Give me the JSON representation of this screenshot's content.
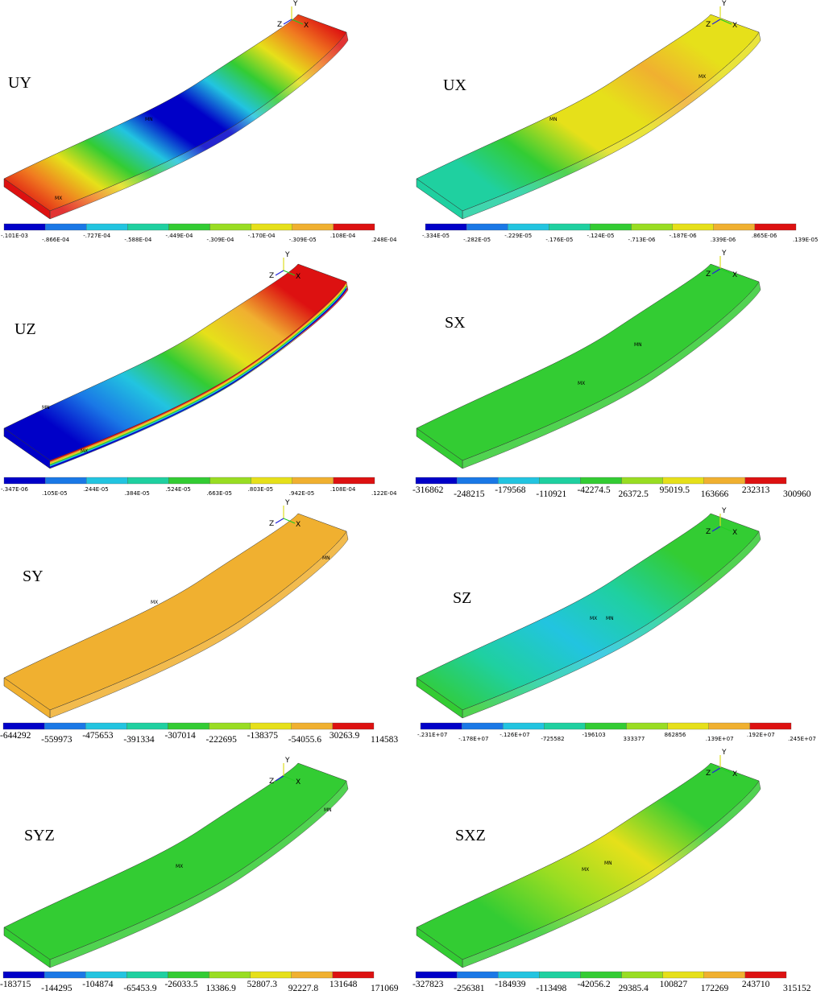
{
  "palette": [
    "#0000c8",
    "#1a78e6",
    "#22c4e0",
    "#1fd0a0",
    "#33cc33",
    "#99dd22",
    "#e6e01a",
    "#f0b030",
    "#f07a20",
    "#dd1111"
  ],
  "panels": [
    {
      "id": "uy",
      "label": "UY",
      "ticks": [
        "-.101E-03",
        "-.866E-04",
        "-.727E-04",
        "-.588E-04",
        "-.449E-04",
        "-.309E-04",
        "-.170E-04",
        "-.309E-05",
        ".108E-04",
        ".248E-04"
      ],
      "tick_style": "small",
      "markers": [
        "MN",
        "MX"
      ]
    },
    {
      "id": "ux",
      "label": "UX",
      "ticks": [
        "-.334E-05",
        "-.282E-05",
        "-.229E-05",
        "-.176E-05",
        "-.124E-05",
        "-.713E-06",
        "-.187E-06",
        ".339E-06",
        ".865E-06",
        ".139E-05"
      ],
      "tick_style": "small",
      "markers": [
        "MN",
        "MX"
      ]
    },
    {
      "id": "uz",
      "label": "UZ",
      "ticks": [
        "-.347E-06",
        ".105E-05",
        ".244E-05",
        ".384E-05",
        ".524E-05",
        ".663E-05",
        ".803E-05",
        ".942E-05",
        ".108E-04",
        ".122E-04"
      ],
      "tick_style": "small",
      "markers": [
        "MN",
        "MX"
      ]
    },
    {
      "id": "sx",
      "label": "SX",
      "ticks": [
        "-316862",
        "-248215",
        "-179568",
        "-110921",
        "-42274.5",
        "26372.5",
        "95019.5",
        "163666",
        "232313",
        "300960"
      ],
      "tick_style": "big",
      "markers": [
        "MN",
        "MX"
      ]
    },
    {
      "id": "sy",
      "label": "SY",
      "ticks": [
        "-644292",
        "-559973",
        "-475653",
        "-391334",
        "-307014",
        "-222695",
        "-138375",
        "-54055.6",
        "30263.9",
        "114583"
      ],
      "tick_style": "big",
      "markers": [
        "MX",
        "MN"
      ]
    },
    {
      "id": "sz",
      "label": "SZ",
      "ticks": [
        "-.231E+07",
        "-.178E+07",
        "-.126E+07",
        "-725582",
        "-196103",
        "333377",
        "862856",
        ".139E+07",
        ".192E+07",
        ".245E+07"
      ],
      "tick_style": "small",
      "markers": [
        "MX",
        "MN"
      ]
    },
    {
      "id": "syz",
      "label": "SYZ",
      "ticks": [
        "-183715",
        "-144295",
        "-104874",
        "-65453.9",
        "-26033.5",
        "13386.9",
        "52807.3",
        "92227.8",
        "131648",
        "171069"
      ],
      "tick_style": "big",
      "markers": [
        "MX",
        "MN"
      ]
    },
    {
      "id": "sxz",
      "label": "SXZ",
      "ticks": [
        "-327823",
        "-256381",
        "-184939",
        "-113498",
        "-42056.2",
        "29385.4",
        "100827",
        "172269",
        "243710",
        "315152"
      ],
      "tick_style": "big",
      "markers": [
        "MX",
        "MN"
      ]
    }
  ],
  "axes": {
    "x": "X",
    "y": "Y",
    "z": "Z"
  }
}
